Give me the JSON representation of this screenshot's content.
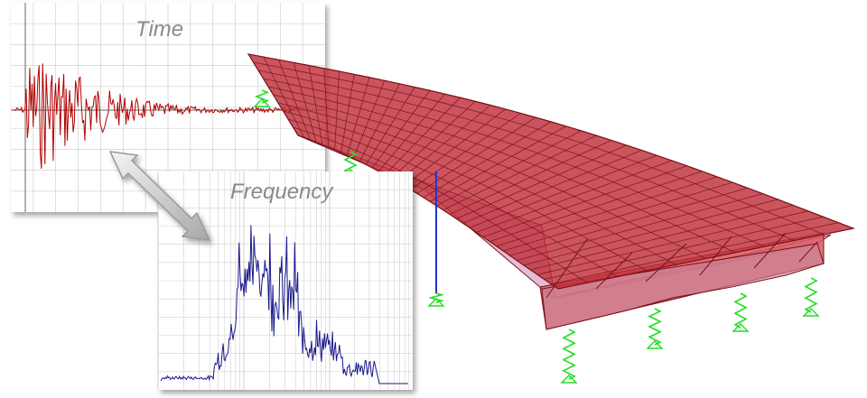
{
  "time_panel": {
    "title": "Time",
    "signal_color": "#b30000",
    "grid_color": "#d0d0d0"
  },
  "frequency_panel": {
    "title": "Frequency",
    "signal_color": "#1a1a8c",
    "grid_color": "#cfcfcf"
  },
  "structure": {
    "fill_color": "#c0303a",
    "edge_color": "#7a1018",
    "underside_color": "#d9a6c8"
  },
  "supports": {
    "color": "#22dd22"
  },
  "column": {
    "color": "#2233cc"
  },
  "arrow": {
    "color": "#bfbfbf",
    "semantic": "double-arrow-icon"
  }
}
